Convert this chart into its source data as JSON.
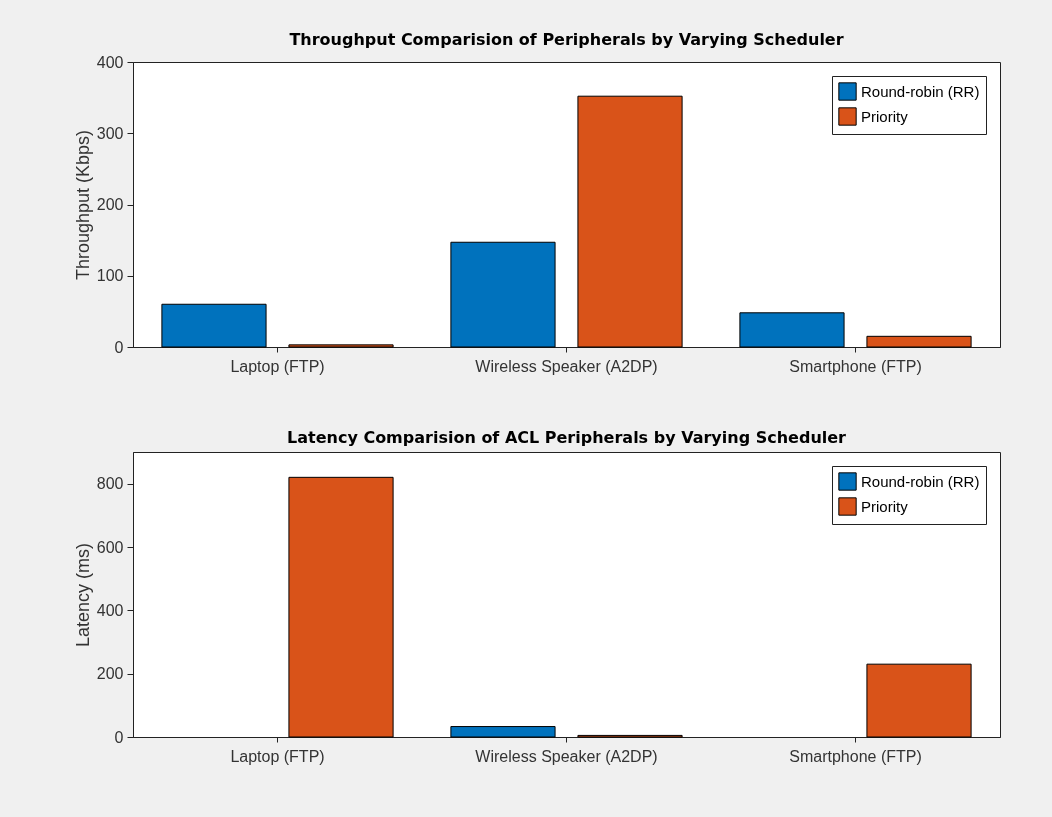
{
  "chart_data": [
    {
      "type": "bar",
      "title": "Throughput Comparision of  Peripherals by Varying Scheduler",
      "ylabel": "Throughput (Kbps)",
      "categories": [
        "Laptop (FTP)",
        "Wireless Speaker (A2DP)",
        "Smartphone (FTP)"
      ],
      "series": [
        {
          "name": "Round-robin (RR)",
          "color": "#0072bd",
          "values": [
            60,
            147,
            48
          ]
        },
        {
          "name": "Priority",
          "color": "#d95319",
          "values": [
            3,
            352,
            15
          ]
        }
      ],
      "ylim": [
        0,
        400
      ],
      "yticks": [
        0,
        100,
        200,
        300,
        400
      ],
      "grid": false,
      "legend": "top right"
    },
    {
      "type": "bar",
      "title": "Latency Comparision of ACL  Peripherals by Varying Scheduler",
      "ylabel": "Latency (ms)",
      "categories": [
        "Laptop (FTP)",
        "Wireless Speaker (A2DP)",
        "Smartphone (FTP)"
      ],
      "series": [
        {
          "name": "Round-robin (RR)",
          "color": "#0072bd",
          "values": [
            null,
            33,
            null
          ]
        },
        {
          "name": "Priority",
          "color": "#d95319",
          "values": [
            820,
            5,
            230
          ]
        }
      ],
      "ylim": [
        0,
        900
      ],
      "yticks": [
        0,
        200,
        400,
        600,
        800
      ],
      "grid": false,
      "legend": "top right"
    }
  ]
}
